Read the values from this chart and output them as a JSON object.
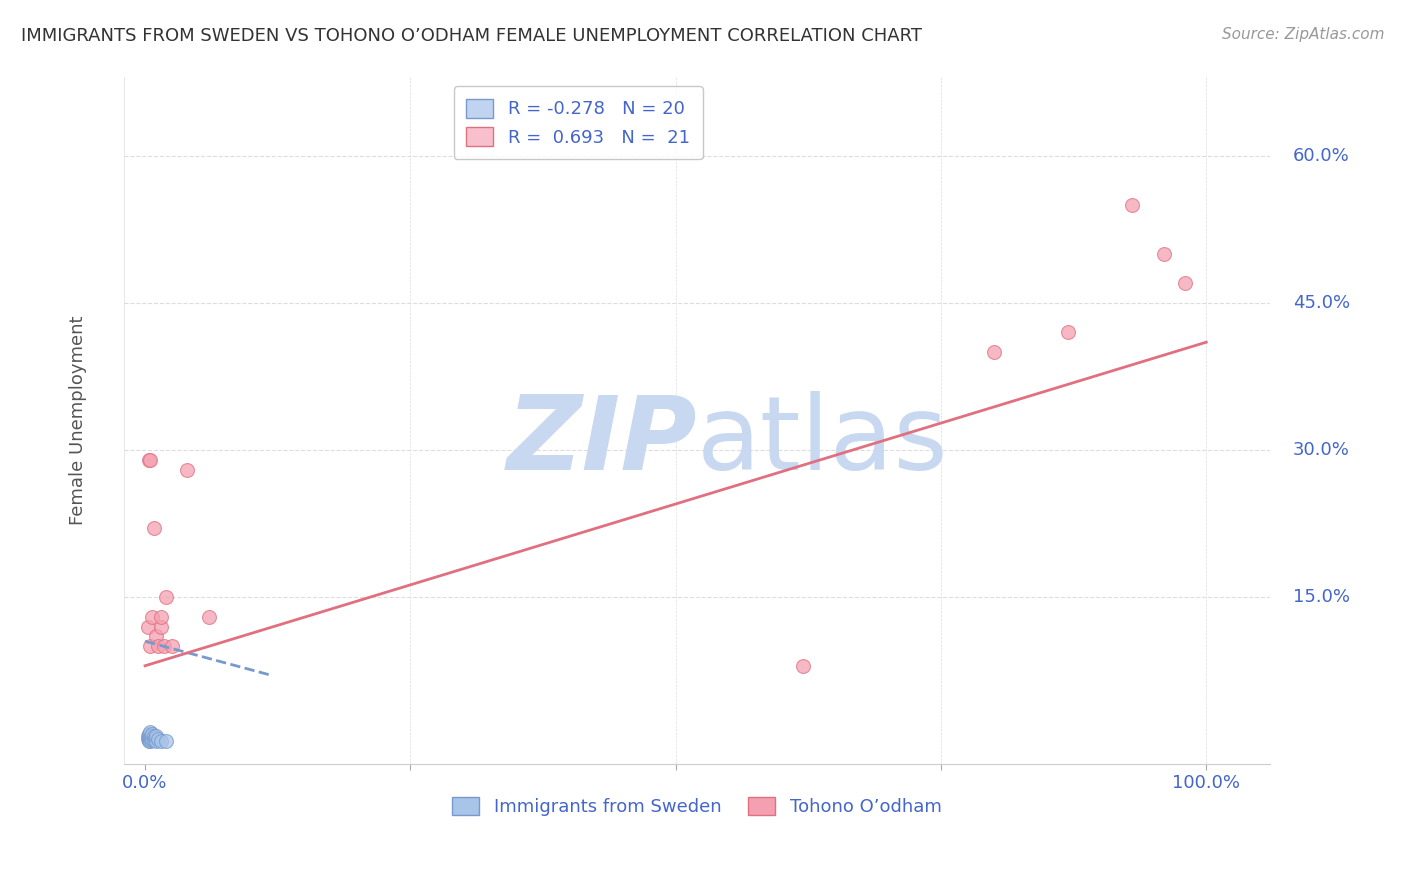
{
  "title": "IMMIGRANTS FROM SWEDEN VS TOHONO O’ODHAM FEMALE UNEMPLOYMENT CORRELATION CHART",
  "source": "Source: ZipAtlas.com",
  "ylabel": "Female Unemployment",
  "xlabel": "",
  "ytick_values": [
    0.15,
    0.3,
    0.45,
    0.6
  ],
  "ytick_labels": [
    "15.0%",
    "30.0%",
    "45.0%",
    "60.0%"
  ],
  "xlim": [
    -0.02,
    1.06
  ],
  "ylim": [
    -0.02,
    0.68
  ],
  "blue_label": "Immigrants from Sweden",
  "pink_label": "Tohono O’odham",
  "blue_R": "-0.278",
  "blue_N": "20",
  "pink_R": "0.693",
  "pink_N": "21",
  "blue_color": "#a8c4e8",
  "pink_color": "#f4a0b0",
  "blue_edge": "#7799cc",
  "pink_edge": "#e07080",
  "title_color": "#333333",
  "axis_label_color": "#4466cc",
  "tick_label_color": "#4466cc",
  "watermark_color_zip": "#c8d8f0",
  "watermark_color_atlas": "#c8d8f0",
  "grid_color": "#dddddd",
  "blue_scatter_x": [
    0.003,
    0.003,
    0.004,
    0.004,
    0.004,
    0.005,
    0.005,
    0.005,
    0.006,
    0.006,
    0.007,
    0.007,
    0.008,
    0.008,
    0.009,
    0.01,
    0.01,
    0.012,
    0.015,
    0.02
  ],
  "blue_scatter_y": [
    0.005,
    0.008,
    0.003,
    0.006,
    0.01,
    0.003,
    0.007,
    0.012,
    0.004,
    0.008,
    0.005,
    0.01,
    0.004,
    0.008,
    0.006,
    0.003,
    0.008,
    0.005,
    0.003,
    0.003
  ],
  "pink_scatter_x": [
    0.003,
    0.004,
    0.005,
    0.005,
    0.007,
    0.008,
    0.01,
    0.012,
    0.015,
    0.015,
    0.018,
    0.02,
    0.025,
    0.04,
    0.06,
    0.62,
    0.8,
    0.87,
    0.93,
    0.96,
    0.98
  ],
  "pink_scatter_y": [
    0.12,
    0.29,
    0.1,
    0.29,
    0.13,
    0.22,
    0.11,
    0.1,
    0.12,
    0.13,
    0.1,
    0.15,
    0.1,
    0.28,
    0.13,
    0.08,
    0.4,
    0.42,
    0.55,
    0.5,
    0.47
  ],
  "blue_line_x": [
    0.0,
    0.12
  ],
  "blue_line_y": [
    0.105,
    0.07
  ],
  "pink_line_x": [
    0.0,
    1.0
  ],
  "pink_line_y": [
    0.08,
    0.41
  ],
  "marker_size": 100,
  "line_width": 2.0,
  "legend_box_color_blue": "#c0d4f0",
  "legend_box_color_pink": "#f8c0cc"
}
